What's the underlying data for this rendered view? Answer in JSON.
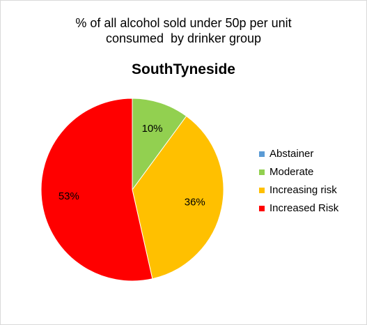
{
  "chart_data": {
    "type": "pie",
    "title_lines": [
      "% of all alcohol sold under 50p per unit",
      "consumed  by drinker group"
    ],
    "subtitle": "SouthTyneside",
    "categories": [
      "Abstainer",
      "Moderate",
      "Increasing risk",
      "Increased Risk"
    ],
    "values": [
      0,
      10,
      36,
      53
    ],
    "data_labels": [
      "",
      "10%",
      "36%",
      "53%"
    ],
    "colors": [
      "#5b9bd5",
      "#92d050",
      "#ffc000",
      "#ff0000"
    ],
    "legend_position": "right",
    "start_angle": "12 o'clock",
    "direction": "clockwise"
  }
}
